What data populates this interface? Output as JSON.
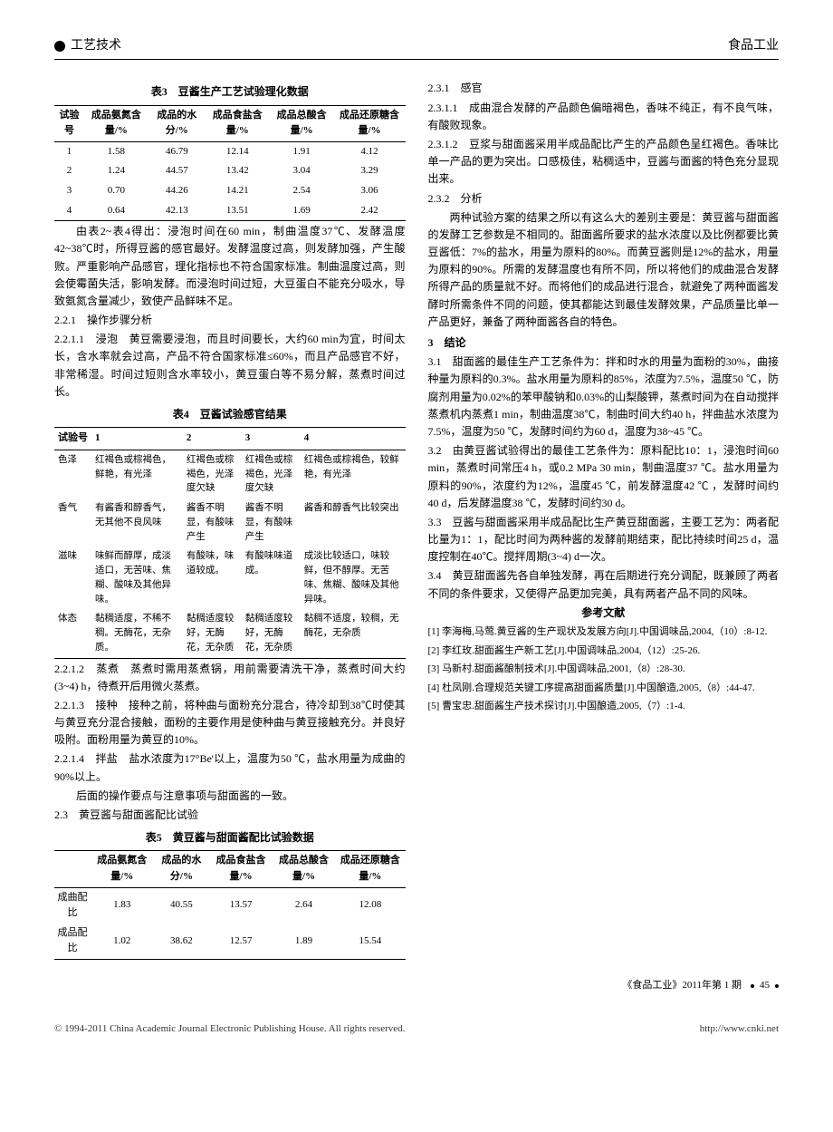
{
  "header": {
    "section": "工艺技术",
    "journal": "食品工业"
  },
  "table3": {
    "title": "表3　豆酱生产工艺试验理化数据",
    "cols": [
      "试验号",
      "成品氨氮含量/%",
      "成品的水分/%",
      "成品食盐含量/%",
      "成品总酸含量/%",
      "成品还原糖含量/%"
    ],
    "rows": [
      [
        "1",
        "1.58",
        "46.79",
        "12.14",
        "1.91",
        "4.12"
      ],
      [
        "2",
        "1.24",
        "44.57",
        "13.42",
        "3.04",
        "3.29"
      ],
      [
        "3",
        "0.70",
        "44.26",
        "14.21",
        "2.54",
        "3.06"
      ],
      [
        "4",
        "0.64",
        "42.13",
        "13.51",
        "1.69",
        "2.42"
      ]
    ]
  },
  "p1": "由表2~表4得出：浸泡时间在60 min，制曲温度37℃、发酵温度42~38℃时，所得豆酱的感官最好。发酵温度过高，则发酵加强，产生酸败。严重影响产品感官，理化指标也不符合国家标准。制曲温度过高，则会使霉菌失活，影响发酵。而浸泡时间过短，大豆蛋白不能充分吸水，导致氨氮含量减少，致使产品鲜味不足。",
  "s221": "2.2.1　操作步骤分析",
  "s2211": "2.2.1.1　浸泡　黄豆需要浸泡，而且时间要长，大约60 min为宜，时间太长，含水率就会过高，产品不符合国家标准≤60%，而且产品感官不好，非常稀湿。时间过短则含水率较小，黄豆蛋白等不易分解，蒸煮时间过长。",
  "table4": {
    "title": "表4　豆酱试验感官结果",
    "cols": [
      "试验号",
      "1",
      "2",
      "3",
      "4"
    ],
    "rows": [
      [
        "色泽",
        "红褐色或棕褐色，鲜艳，有光泽",
        "红褐色或棕褐色，光泽度欠缺",
        "红褐色或棕褐色，光泽度欠缺",
        "红褐色或棕褐色，较鲜艳，有光泽"
      ],
      [
        "香气",
        "有酱香和醇香气，无其他不良风味",
        "酱香不明显，有酸味产生",
        "酱香不明显，有酸味产生",
        "酱香和醇香气比较突出"
      ],
      [
        "滋味",
        "味鲜而醇厚，成淡适口，无苦味、焦糊、酸味及其他异味。",
        "有酸味，味道较成。",
        "有酸味味道成。",
        "成淡比较适口，味较鲜，但不醇厚。无苦味、焦糊、酸味及其他异味。"
      ],
      [
        "体态",
        "黏稠适度，不稀不稠。无酶花，无杂质。",
        "黏稠适度较好，无酶花，无杂质",
        "黏稠适度较好，无酶花，无杂质",
        "黏稠不适度，较稠，无酶花，无杂质"
      ]
    ]
  },
  "s2212": "2.2.1.2　蒸煮　蒸煮时需用蒸煮锅，用前需要清洗干净，蒸煮时间大约(3~4) h，待煮开后用微火蒸煮。",
  "s2213": "2.2.1.3　接种　接种之前，将种曲与面粉充分混合，待冷却到38℃时使其与黄豆充分混合接触，面粉的主要作用是使种曲与黄豆接触充分。并良好吸附。面粉用量为黄豆的10%。",
  "s2214": "2.2.1.4　拌盐　盐水浓度为17°Be'以上，温度为50 ℃，盐水用量为成曲的90%以上。",
  "p2": "后面的操作要点与注意事项与甜面酱的一致。",
  "s23": "2.3　黄豆酱与甜面酱配比试验",
  "table5": {
    "title": "表5　黄豆酱与甜面酱配比试验数据",
    "cols": [
      "",
      "成品氨氮含量/%",
      "成品的水分/%",
      "成品食盐含量/%",
      "成品总酸含量/%",
      "成品还原糖含量/%"
    ],
    "rows": [
      [
        "成曲配比",
        "1.83",
        "40.55",
        "13.57",
        "2.64",
        "12.08"
      ],
      [
        "成品配比",
        "1.02",
        "38.62",
        "12.57",
        "1.89",
        "15.54"
      ]
    ]
  },
  "s231": "2.3.1　感官",
  "s2311": "2.3.1.1　成曲混合发酵的产品颜色偏暗褐色，香味不纯正，有不良气味，有酸败现象。",
  "s2312": "2.3.1.2　豆浆与甜面酱采用半成品配比产生的产品颜色呈红褐色。香味比单一产品的更为突出。口感极佳，粘稠适中，豆酱与面酱的特色充分显现出来。",
  "s232": "2.3.2　分析",
  "p3": "两种试验方案的结果之所以有这么大的差别主要是：黄豆酱与甜面酱的发酵工艺参数是不相同的。甜面酱所要求的盐水浓度以及比例都要比黄豆酱低：7%的盐水，用量为原料的80%。而黄豆酱则是12%的盐水，用量为原料的90%。所需的发酵温度也有所不同，所以将他们的成曲混合发酵所得产品的质量就不好。而将他们的成品进行混合，就避免了两种面酱发酵时所需条件不同的问题，使其都能达到最佳发酵效果，产品质量比单一产品更好，兼备了两种面酱各自的特色。",
  "s3": "3　结论",
  "s31": "3.1　甜面酱的最佳生产工艺条件为：拌和时水的用量为面粉的30%，曲接种量为原料的0.3%。盐水用量为原料的85%，浓度为7.5%，温度50 ℃，防腐剂用量为0.02%的苯甲酸钠和0.03%的山梨酸钾，蒸煮时间为在自动搅拌蒸煮机内蒸煮1 min，制曲温度38℃，制曲时间大约40 h，拌曲盐水浓度为7.5%，温度为50 ℃，发酵时间约为60 d，温度为38~45 ℃。",
  "s32": "3.2　由黄豆酱试验得出的最佳工艺条件为：原料配比10：1，浸泡时间60 min，蒸煮时间常压4 h，或0.2 MPa 30 min，制曲温度37 ℃。盐水用量为原料的90%，浓度约为12%，温度45 ℃，前发酵温度42 ℃ ，发酵时间约40 d，后发酵温度38 ℃，发酵时间约30 d。",
  "s33": "3.3　豆酱与甜面酱采用半成品配比生产黄豆甜面酱，主要工艺为：两者配比量为1：1，配比时间为两种酱的发酵前期结束，配比持续时间25 d，温度控制在40℃。搅拌周期(3~4) d一次。",
  "s34": "3.4　黄豆甜面酱先各自单独发酵，再在后期进行充分调配，既兼顾了两者不同的条件要求，又使得产品更加完美，具有两者产品不同的风味。",
  "refsTitle": "参考文献",
  "refs": [
    "[1] 李海梅,马莺.黄豆酱的生产现状及发展方向[J].中国调味品,2004,（10）:8-12.",
    "[2] 李红玫.甜面酱生产新工艺[J].中国调味品,2004,（12）:25-26.",
    "[3] 马新村.甜面酱酿制技术[J].中国调味品,2001,（8）:28-30.",
    "[4] 杜凤刚.合理规范关键工序提高甜面酱质量[J].中国酿造,2005,（8）:44-47.",
    "[5] 曹宝忠.甜面酱生产技术探讨[J].中国酿造,2005,（7）:1-4."
  ],
  "footer": {
    "issue": "《食品工业》2011年第 1 期",
    "page": "45"
  },
  "copyright": {
    "left": "© 1994-2011 China Academic Journal Electronic Publishing House. All rights reserved.",
    "right": "http://www.cnki.net"
  }
}
